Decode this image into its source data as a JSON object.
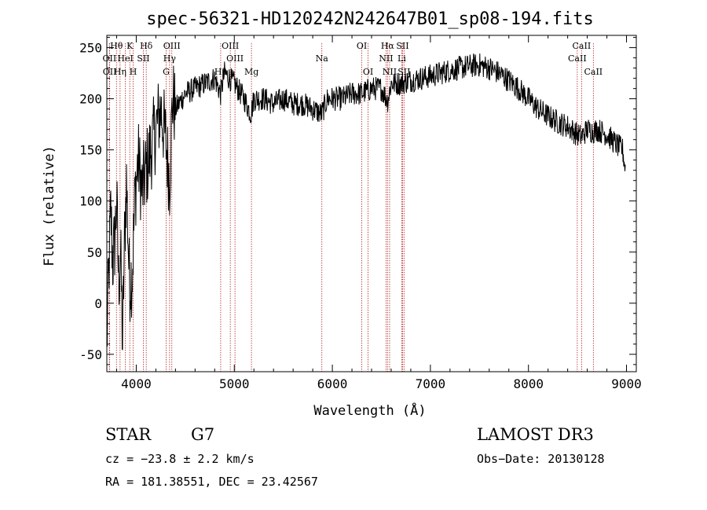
{
  "chart_data": {
    "type": "line",
    "title": "spec-56321-HD120242N242647B01_sp08-194.fits",
    "xlabel": "Wavelength (Å)",
    "ylabel": "Flux (relative)",
    "xlim": [
      3700,
      9100
    ],
    "ylim": [
      -67,
      262
    ],
    "xticks": [
      4000,
      5000,
      6000,
      7000,
      8000,
      9000
    ],
    "yticks": [
      -50,
      0,
      50,
      100,
      150,
      200,
      250
    ],
    "spectrum_anchors": [
      [
        3700,
        -40
      ],
      [
        3720,
        30
      ],
      [
        3740,
        90
      ],
      [
        3760,
        40
      ],
      [
        3780,
        60
      ],
      [
        3800,
        100
      ],
      [
        3820,
        20
      ],
      [
        3840,
        50
      ],
      [
        3860,
        -40
      ],
      [
        3880,
        60
      ],
      [
        3900,
        120
      ],
      [
        3930,
        20
      ],
      [
        3960,
        30
      ],
      [
        3990,
        110
      ],
      [
        4020,
        140
      ],
      [
        4060,
        110
      ],
      [
        4100,
        130
      ],
      [
        4150,
        150
      ],
      [
        4200,
        170
      ],
      [
        4250,
        190
      ],
      [
        4300,
        160
      ],
      [
        4340,
        120
      ],
      [
        4370,
        200
      ],
      [
        4400,
        190
      ],
      [
        4500,
        205
      ],
      [
        4600,
        210
      ],
      [
        4700,
        215
      ],
      [
        4800,
        220
      ],
      [
        4860,
        205
      ],
      [
        4900,
        225
      ],
      [
        5000,
        215
      ],
      [
        5100,
        200
      ],
      [
        5170,
        185
      ],
      [
        5200,
        200
      ],
      [
        5300,
        200
      ],
      [
        5400,
        195
      ],
      [
        5500,
        200
      ],
      [
        5600,
        195
      ],
      [
        5700,
        195
      ],
      [
        5800,
        190
      ],
      [
        5890,
        185
      ],
      [
        5950,
        200
      ],
      [
        6000,
        200
      ],
      [
        6100,
        200
      ],
      [
        6200,
        205
      ],
      [
        6300,
        205
      ],
      [
        6400,
        210
      ],
      [
        6500,
        210
      ],
      [
        6563,
        198
      ],
      [
        6600,
        215
      ],
      [
        6700,
        215
      ],
      [
        6800,
        218
      ],
      [
        6900,
        220
      ],
      [
        7000,
        222
      ],
      [
        7200,
        228
      ],
      [
        7400,
        232
      ],
      [
        7500,
        233
      ],
      [
        7600,
        230
      ],
      [
        7700,
        225
      ],
      [
        7800,
        218
      ],
      [
        7900,
        210
      ],
      [
        8000,
        200
      ],
      [
        8100,
        190
      ],
      [
        8200,
        183
      ],
      [
        8300,
        177
      ],
      [
        8400,
        173
      ],
      [
        8498,
        165
      ],
      [
        8542,
        163
      ],
      [
        8600,
        170
      ],
      [
        8662,
        168
      ],
      [
        8700,
        170
      ],
      [
        8800,
        165
      ],
      [
        8900,
        155
      ],
      [
        8960,
        150
      ],
      [
        8990,
        130
      ]
    ],
    "noise_amplitude": 12,
    "lines": [
      {
        "label": "Hθ",
        "wavelength": 3798,
        "row": 1
      },
      {
        "label": "OII",
        "wavelength": 3727,
        "row": 2
      },
      {
        "label": "OII",
        "wavelength": 3729,
        "row": 3
      },
      {
        "label": "K",
        "wavelength": 3934,
        "row": 1
      },
      {
        "label": "Hη",
        "wavelength": 3835,
        "row": 3
      },
      {
        "label": "H",
        "wavelength": 3969,
        "row": 3
      },
      {
        "label": "HeI",
        "wavelength": 3889,
        "row": 2
      },
      {
        "label": "SII",
        "wavelength": 4072,
        "row": 2
      },
      {
        "label": "Hδ",
        "wavelength": 4102,
        "row": 1
      },
      {
        "label": "OIII",
        "wavelength": 4363,
        "row": 1
      },
      {
        "label": "Hγ",
        "wavelength": 4340,
        "row": 2
      },
      {
        "label": "G",
        "wavelength": 4305,
        "row": 3
      },
      {
        "label": "Hβ",
        "wavelength": 4861,
        "row": 3
      },
      {
        "label": "OIII",
        "wavelength": 4959,
        "row": 1
      },
      {
        "label": "OIII",
        "wavelength": 5007,
        "row": 2
      },
      {
        "label": "Mg",
        "wavelength": 5175,
        "row": 3
      },
      {
        "label": "Na",
        "wavelength": 5893,
        "row": 2
      },
      {
        "label": "OI",
        "wavelength": 6300,
        "row": 1
      },
      {
        "label": "OI",
        "wavelength": 6364,
        "row": 3
      },
      {
        "label": "Hα",
        "wavelength": 6563,
        "row": 1
      },
      {
        "label": "SII",
        "wavelength": 6716,
        "row": 1
      },
      {
        "label": "NII",
        "wavelength": 6548,
        "row": 2
      },
      {
        "label": "Li",
        "wavelength": 6708,
        "row": 2
      },
      {
        "label": "NII",
        "wavelength": 6584,
        "row": 3
      },
      {
        "label": "SII",
        "wavelength": 6731,
        "row": 3
      },
      {
        "label": "CaII",
        "wavelength": 8542,
        "row": 1
      },
      {
        "label": "CaII",
        "wavelength": 8498,
        "row": 2
      },
      {
        "label": "CaII",
        "wavelength": 8662,
        "row": 3
      }
    ]
  },
  "info": {
    "class": "STAR",
    "subclass": "G7",
    "survey": "LAMOST DR3",
    "cz": "cz = −23.8 ± 2.2 km/s",
    "obs_date": "Obs−Date: 20130128",
    "coords": "RA = 181.38551, DEC =  23.42567"
  },
  "colors": {
    "spectrum": "#000000",
    "line_marker": "#b22222",
    "axis": "#000000"
  }
}
